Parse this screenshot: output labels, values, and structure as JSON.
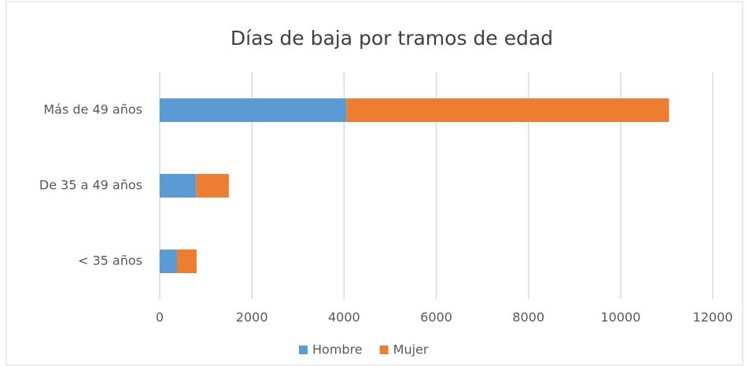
{
  "chart_data": {
    "type": "stacked_barh",
    "title": "Días de baja por tramos de edad",
    "categories": [
      "Más de 49 años",
      "De 35 a 49 años",
      "< 35 años"
    ],
    "series": [
      {
        "name": "Hombre",
        "color": "#5b9bd5",
        "values": [
          4050,
          790,
          375
        ]
      },
      {
        "name": "Mujer",
        "color": "#ed7d31",
        "values": [
          7000,
          710,
          425
        ]
      }
    ],
    "xlim": [
      0,
      12000
    ],
    "xticks": [
      0,
      2000,
      4000,
      6000,
      8000,
      10000,
      12000
    ],
    "grid": true,
    "legend": "bottom"
  }
}
